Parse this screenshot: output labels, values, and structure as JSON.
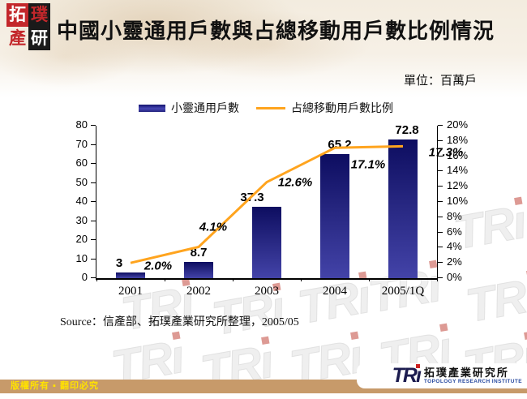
{
  "header": {
    "logo_chars": [
      "拓",
      "璞",
      "產",
      "研"
    ],
    "title": "中國小靈通用戶數與占總移動用戶數比例情況",
    "unit_label": "單位：百萬戶"
  },
  "chart_data": {
    "type": "bar+line",
    "categories": [
      "2001",
      "2002",
      "2003",
      "2004",
      "2005/1Q"
    ],
    "series": [
      {
        "name": "小靈通用戶數",
        "type": "bar",
        "values": [
          3,
          8.7,
          37.3,
          65.2,
          72.8
        ],
        "labels": [
          "3",
          "8.7",
          "37.3",
          "65.2",
          "72.8"
        ],
        "color_top": "#0d0d60",
        "color_bottom": "#4343a8",
        "axis": "left"
      },
      {
        "name": "占總移動用戶數比例",
        "type": "line",
        "values": [
          2.0,
          4.1,
          12.6,
          17.1,
          17.3
        ],
        "labels": [
          "2.0%",
          "4.1%",
          "12.6%",
          "17.1%",
          "17.3%"
        ],
        "color": "#ffa41e",
        "axis": "right"
      }
    ],
    "left_axis": {
      "min": 0,
      "max": 80,
      "step": 10,
      "ticks": [
        "0",
        "10",
        "20",
        "30",
        "40",
        "50",
        "60",
        "70",
        "80"
      ]
    },
    "right_axis": {
      "min": 0,
      "max": 20,
      "step": 2,
      "ticks": [
        "0%",
        "2%",
        "4%",
        "6%",
        "8%",
        "10%",
        "12%",
        "14%",
        "16%",
        "18%",
        "20%"
      ]
    },
    "legend_position": "top-center",
    "grid": false
  },
  "source": "Source：信產部、拓璞產業研究所整理，2005/05",
  "watermark": {
    "text": "TRi"
  },
  "footer": {
    "copyright": "版權所有 ▪ 翻印必究",
    "tri_logo_text": "TRi",
    "institute_zh": "拓璞產業研究所",
    "institute_en": "TOPOLOGY RESEARCH INSTITUTE"
  }
}
